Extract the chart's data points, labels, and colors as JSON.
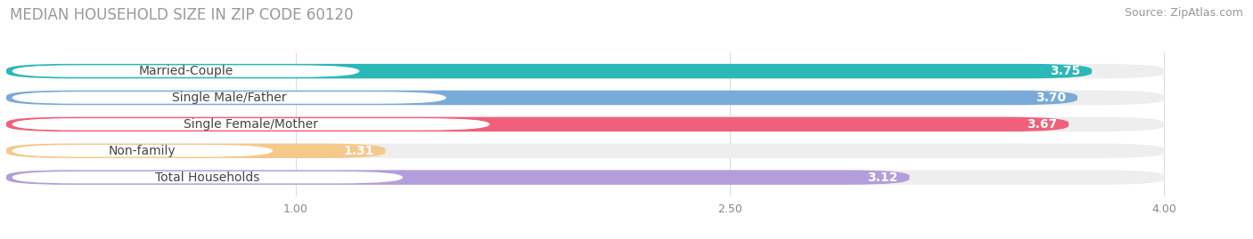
{
  "title": "MEDIAN HOUSEHOLD SIZE IN ZIP CODE 60120",
  "source": "Source: ZipAtlas.com",
  "categories": [
    "Married-Couple",
    "Single Male/Father",
    "Single Female/Mother",
    "Non-family",
    "Total Households"
  ],
  "values": [
    3.75,
    3.7,
    3.67,
    1.31,
    3.12
  ],
  "bar_colors": [
    "#2ab8b8",
    "#7aaad8",
    "#f0607a",
    "#f5c98a",
    "#b39ddb"
  ],
  "bar_bg_color": "#eeeeee",
  "xlim_data": [
    0.0,
    4.2
  ],
  "xmin": 0.0,
  "xmax": 4.0,
  "xticks": [
    1.0,
    2.5,
    4.0
  ],
  "value_color": "#ffffff",
  "label_color": "#555555",
  "title_color": "#999999",
  "title_fontsize": 12,
  "source_fontsize": 9,
  "label_fontsize": 10,
  "value_fontsize": 10,
  "background_color": "#ffffff"
}
